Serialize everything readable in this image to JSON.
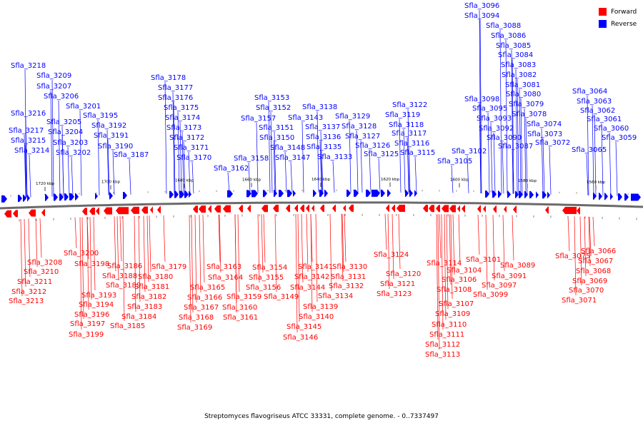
{
  "legend": [
    {
      "label": "Forward",
      "color": "#ff0000"
    },
    {
      "label": "Reverse",
      "color": "#0000ff"
    }
  ],
  "caption": "Streptomyces flavogriseus ATCC 33331, complete genome. - 0..7337497",
  "scale_labels": [
    "1720 kbp",
    "1700 kbp",
    "1680 kbp",
    "1660 kbp",
    "1640 kbp",
    "1620 kbp",
    "1600 kbp",
    "1580 kbp",
    "1560 kbp"
  ],
  "reverse_genes": [
    "Sfla_3218",
    "Sfla_3216",
    "Sfla_3217",
    "Sfla_3215",
    "Sfla_3214",
    "Sfla_3209",
    "Sfla_3207",
    "Sfla_3206",
    "Sfla_3205",
    "Sfla_3204",
    "Sfla_3203",
    "Sfla_3202",
    "Sfla_3201",
    "Sfla_3195",
    "Sfla_3192",
    "Sfla_3191",
    "Sfla_3190",
    "Sfla_3187",
    "Sfla_3178",
    "Sfla_3177",
    "Sfla_3176",
    "Sfla_3175",
    "Sfla_3174",
    "Sfla_3173",
    "Sfla_3172",
    "Sfla_3171",
    "Sfla_3170",
    "Sfla_3162",
    "Sfla_3158",
    "Sfla_3157",
    "Sfla_3153",
    "Sfla_3152",
    "Sfla_3151",
    "Sfla_3150",
    "Sfla_3148",
    "Sfla_3147",
    "Sfla_3143",
    "Sfla_3138",
    "Sfla_3137",
    "Sfla_3136",
    "Sfla_3135",
    "Sfla_3133",
    "Sfla_3129",
    "Sfla_3128",
    "Sfla_3127",
    "Sfla_3126",
    "Sfla_3125",
    "Sfla_3122",
    "Sfla_3119",
    "Sfla_3118",
    "Sfla_3117",
    "Sfla_3116",
    "Sfla_3115",
    "Sfla_3102",
    "Sfla_3105",
    "Sfla_3096",
    "Sfla_3094",
    "Sfla_3088",
    "Sfla_3086",
    "Sfla_3085",
    "Sfla_3084",
    "Sfla_3083",
    "Sfla_3082",
    "Sfla_3081",
    "Sfla_3080",
    "Sfla_3079",
    "Sfla_3078",
    "Sfla_3098",
    "Sfla_3095",
    "Sfla_3093",
    "Sfla_3092",
    "Sfla_3090",
    "Sfla_3087",
    "Sfla_3074",
    "Sfla_3073",
    "Sfla_3072",
    "Sfla_3064",
    "Sfla_3063",
    "Sfla_3062",
    "Sfla_3061",
    "Sfla_3060",
    "Sfla_3059",
    "Sfla_3065"
  ],
  "forward_genes": [
    "Sfla_3208",
    "Sfla_3210",
    "Sfla_3211",
    "Sfla_3212",
    "Sfla_3213",
    "Sfla_3200",
    "Sfla_3198",
    "Sfla_3193",
    "Sfla_3194",
    "Sfla_3196",
    "Sfla_3197",
    "Sfla_3199",
    "Sfla_3186",
    "Sfla_3188",
    "Sfla_3189",
    "Sfla_3185",
    "Sfla_3179",
    "Sfla_3180",
    "Sfla_3181",
    "Sfla_3182",
    "Sfla_3183",
    "Sfla_3184",
    "Sfla_3163",
    "Sfla_3164",
    "Sfla_3165",
    "Sfla_3166",
    "Sfla_3167",
    "Sfla_3168",
    "Sfla_3169",
    "Sfla_3159",
    "Sfla_3160",
    "Sfla_3161",
    "Sfla_3154",
    "Sfla_3155",
    "Sfla_3156",
    "Sfla_3149",
    "Sfla_3141",
    "Sfla_3142",
    "Sfla_3144",
    "Sfla_3139",
    "Sfla_3140",
    "Sfla_3145",
    "Sfla_3146",
    "Sfla_3130",
    "Sfla_3131",
    "Sfla_3132",
    "Sfla_3134",
    "Sfla_3124",
    "Sfla_3120",
    "Sfla_3121",
    "Sfla_3123",
    "Sfla_3114",
    "Sfla_3104",
    "Sfla_3106",
    "Sfla_3108",
    "Sfla_3107",
    "Sfla_3109",
    "Sfla_3110",
    "Sfla_3111",
    "Sfla_3112",
    "Sfla_3113",
    "Sfla_3101",
    "Sfla_3097",
    "Sfla_3099",
    "Sfla_3089",
    "Sfla_3091",
    "Sfla_3075",
    "Sfla_3066",
    "Sfla_3067",
    "Sfla_3068",
    "Sfla_3069",
    "Sfla_3070",
    "Sfla_3071"
  ]
}
